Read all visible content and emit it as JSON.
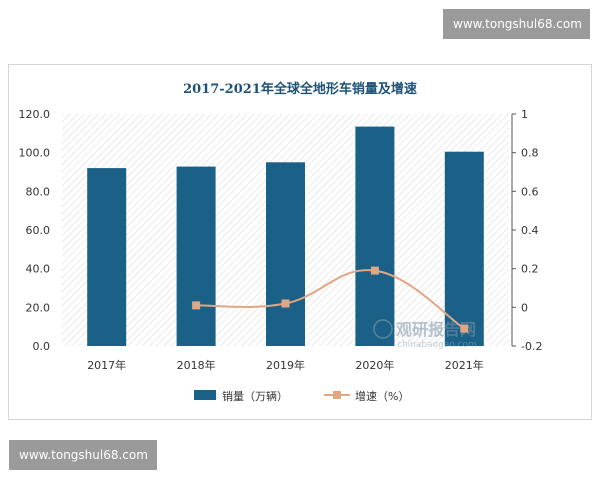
{
  "watermark": {
    "top": "www.tongshul68.com",
    "bottom": "www.tongshul68.com",
    "logo_text": "观研报告网",
    "logo_url": "chinabaogao.com"
  },
  "colors": {
    "bar": "#1b6087",
    "line": "#e0a787",
    "title": "#1d5276",
    "hatch": "#dcdcdc"
  },
  "chart_data": {
    "type": "bar",
    "title": "2017-2021年全球全地形车销量及增速",
    "categories": [
      "2017年",
      "2018年",
      "2019年",
      "2020年",
      "2021年"
    ],
    "series": [
      {
        "name": "销量（万辆）",
        "type": "bar",
        "axis": "left",
        "values": [
          92.0,
          92.8,
          95.0,
          113.5,
          100.5
        ]
      },
      {
        "name": "增速（%）",
        "type": "line",
        "axis": "right",
        "values": [
          null,
          0.01,
          0.02,
          0.19,
          -0.11
        ]
      }
    ],
    "y_left": {
      "ticks": [
        "120.0",
        "100.0",
        "80.0",
        "60.0",
        "40.0",
        "20.0",
        "0.0"
      ],
      "min": 0,
      "max": 120
    },
    "y_right": {
      "ticks": [
        "1",
        "0.8",
        "0.6",
        "0.4",
        "0.2",
        "0",
        "-0.2"
      ],
      "min": -0.2,
      "max": 1
    },
    "legend_position": "bottom",
    "grid": false
  }
}
